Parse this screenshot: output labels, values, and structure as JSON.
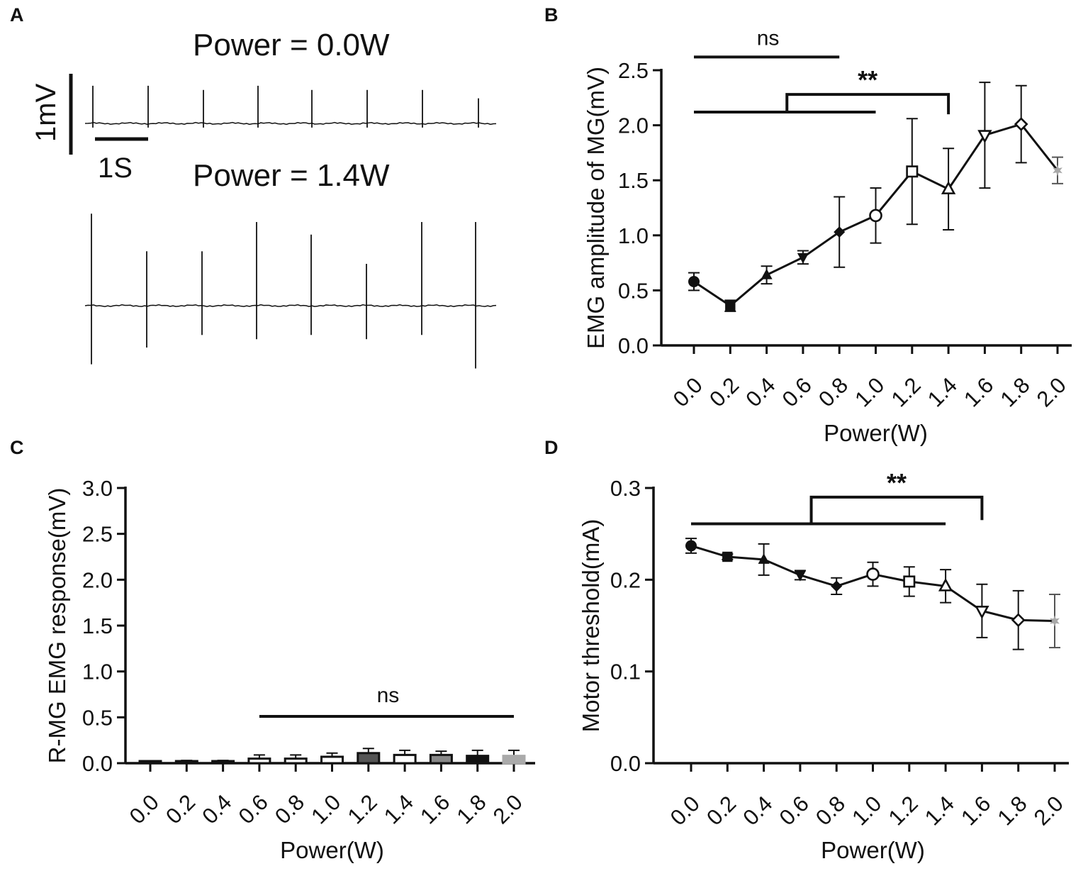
{
  "panels": {
    "A": {
      "letter": "A",
      "trace1_title": "Power = 0.0W",
      "trace2_title": "Power = 1.4W",
      "scale_v": "1mV",
      "scale_t": "1S"
    },
    "B": {
      "letter": "B"
    },
    "C": {
      "letter": "C"
    },
    "D": {
      "letter": "D"
    }
  },
  "chart_data": [
    {
      "panel": "A",
      "type": "line",
      "title": "EMG traces",
      "traces": [
        {
          "name": "Power = 0.0W",
          "spikes_up_mV": [
            0.45,
            0.45,
            0.4,
            0.45,
            0.4,
            0.4,
            0.4,
            0.3
          ],
          "spikes_down_mV": [
            0.05,
            0.05,
            0.05,
            0.05,
            0.05,
            0.05,
            0.05,
            0.05
          ]
        },
        {
          "name": "Power = 1.4W",
          "spikes_up_mV": [
            1.1,
            0.65,
            0.65,
            1.0,
            0.85,
            0.5,
            1.0,
            1.0
          ],
          "spikes_down_mV": [
            0.7,
            0.5,
            0.35,
            0.4,
            0.35,
            0.4,
            0.35,
            0.75
          ]
        }
      ],
      "scale_bar": {
        "voltage": "1mV",
        "time": "1S"
      }
    },
    {
      "panel": "B",
      "type": "line",
      "xlabel": "Power(W)",
      "ylabel": "EMG amplitude of MG(mV)",
      "ylim": [
        0,
        2.5
      ],
      "yticks": [
        "0.0",
        "0.5",
        "1.0",
        "1.5",
        "2.0",
        "2.5"
      ],
      "categories": [
        "0.0",
        "0.2",
        "0.4",
        "0.6",
        "0.8",
        "1.0",
        "1.2",
        "1.4",
        "1.6",
        "1.8",
        "2.0"
      ],
      "values": [
        0.58,
        0.36,
        0.64,
        0.8,
        1.03,
        1.18,
        1.58,
        1.42,
        1.91,
        2.01,
        1.59
      ],
      "errors": [
        0.08,
        0.05,
        0.08,
        0.06,
        0.32,
        0.25,
        0.48,
        0.37,
        0.48,
        0.35,
        0.12
      ],
      "markers": [
        "circle-filled",
        "square-filled",
        "triangle-up-filled",
        "triangle-down-filled",
        "diamond-filled",
        "circle-open",
        "square-open",
        "triangle-up-open",
        "triangle-down-open",
        "diamond-open",
        "star-gray"
      ],
      "significance": [
        {
          "label": "ns",
          "from": "0.0",
          "to": "0.8",
          "y": 2.62
        },
        {
          "label": "**",
          "from": "0.0 to 1.0",
          "to": "1.4",
          "y": 2.12,
          "y_top": 2.28
        }
      ]
    },
    {
      "panel": "C",
      "type": "bar",
      "xlabel": "Power(W)",
      "ylabel": "R-MG EMG response(mV)",
      "ylim": [
        0,
        3.0
      ],
      "yticks": [
        "0.0",
        "0.5",
        "1.0",
        "1.5",
        "2.0",
        "2.5",
        "3.0"
      ],
      "categories": [
        "0.0",
        "0.2",
        "0.4",
        "0.6",
        "0.8",
        "1.0",
        "1.2",
        "1.4",
        "1.6",
        "1.8",
        "2.0"
      ],
      "values": [
        0.01,
        0.02,
        0.02,
        0.05,
        0.05,
        0.07,
        0.11,
        0.09,
        0.09,
        0.08,
        0.08
      ],
      "errors": [
        0.01,
        0.01,
        0.01,
        0.04,
        0.04,
        0.04,
        0.05,
        0.05,
        0.04,
        0.06,
        0.06
      ],
      "bar_colors": [
        "#111111",
        "#111111",
        "#111111",
        "#ffffff",
        "#ffffff",
        "#ffffff",
        "#555555",
        "#ffffff",
        "#888888",
        "#111111",
        "#aaaaaa"
      ],
      "significance": [
        {
          "label": "ns",
          "from": "0.6",
          "to": "2.0",
          "y": 0.51
        }
      ]
    },
    {
      "panel": "D",
      "type": "line",
      "xlabel": "Power(W)",
      "ylabel": "Motor threshold(mA)",
      "ylim": [
        0,
        0.3
      ],
      "yticks": [
        "0.0",
        "0.1",
        "0.2",
        "0.3"
      ],
      "categories": [
        "0.0",
        "0.2",
        "0.4",
        "0.6",
        "0.8",
        "1.0",
        "1.2",
        "1.4",
        "1.6",
        "1.8",
        "2.0"
      ],
      "values": [
        0.237,
        0.225,
        0.222,
        0.205,
        0.193,
        0.206,
        0.198,
        0.193,
        0.166,
        0.156,
        0.155
      ],
      "errors": [
        0.008,
        0.003,
        0.017,
        0.005,
        0.009,
        0.013,
        0.016,
        0.018,
        0.029,
        0.032,
        0.029
      ],
      "markers": [
        "circle-filled",
        "square-filled",
        "triangle-up-filled",
        "triangle-down-filled",
        "diamond-filled",
        "circle-open",
        "square-open",
        "triangle-up-open",
        "triangle-down-open",
        "diamond-open",
        "star-gray"
      ],
      "significance": [
        {
          "label": "**",
          "from": "0.0 to 1.4",
          "to": "1.6",
          "y": 0.261,
          "y_top": 0.29
        }
      ]
    }
  ]
}
